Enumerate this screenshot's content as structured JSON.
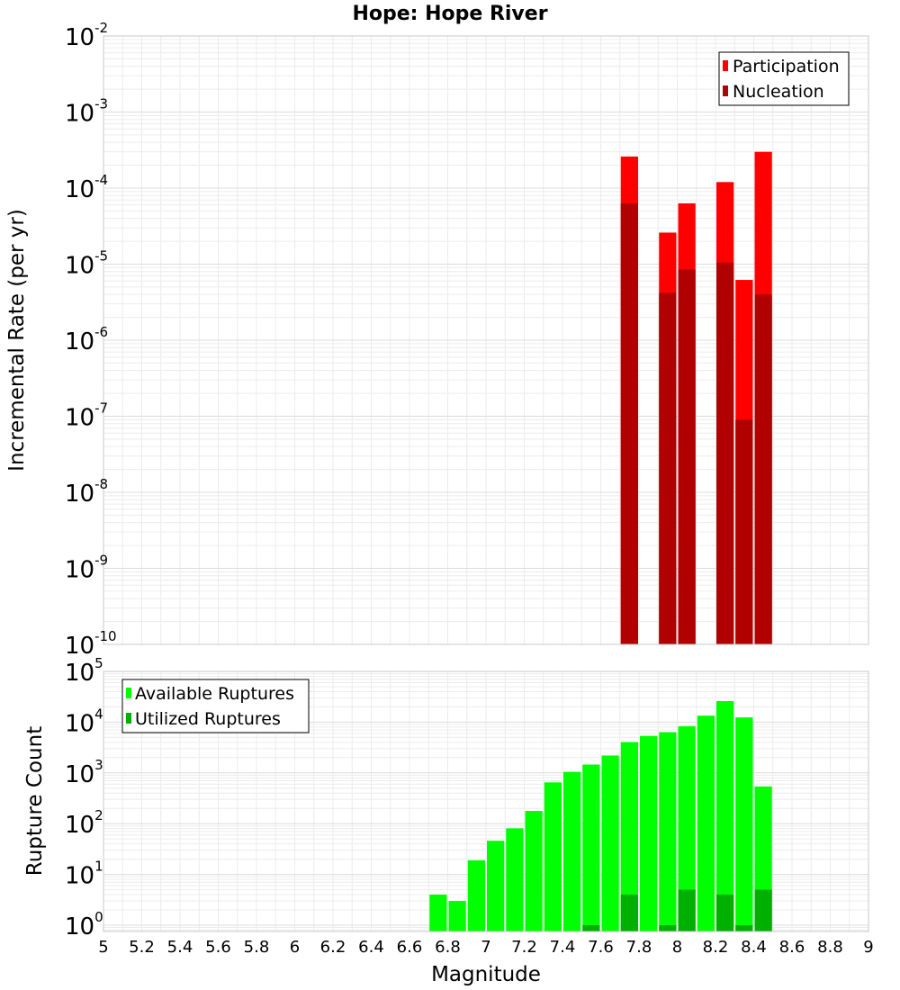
{
  "chart_data": [
    {
      "type": "bar",
      "title": "Hope: Hope River",
      "xlabel": "Magnitude",
      "ylabel": "Incremental Rate (per yr)",
      "y_scale": "log",
      "ylim": [
        1e-10,
        0.01
      ],
      "xlim": [
        5,
        9
      ],
      "bin_width": 0.1,
      "legend_position": "top-right",
      "grid": true,
      "series": [
        {
          "name": "Participation",
          "color": "#ff0000",
          "x": [
            7.75,
            7.95,
            8.05,
            8.25,
            8.35,
            8.45
          ],
          "values": [
            0.00026,
            2.6e-05,
            6.3e-05,
            0.00012,
            6.2e-06,
            0.0003
          ]
        },
        {
          "name": "Nucleation",
          "color": "#b00000",
          "x": [
            7.75,
            7.95,
            8.05,
            8.25,
            8.35,
            8.45
          ],
          "values": [
            6.3e-05,
            4.2e-06,
            8.5e-06,
            1.05e-05,
            9e-08,
            4e-06
          ]
        }
      ]
    },
    {
      "type": "bar",
      "xlabel": "Magnitude",
      "ylabel": "Rupture Count",
      "y_scale": "log",
      "ylim": [
        0.75,
        100000
      ],
      "xlim": [
        5,
        9
      ],
      "bin_width": 0.1,
      "legend_position": "top-left",
      "grid": true,
      "series": [
        {
          "name": "Available Ruptures",
          "color": "#00ff00",
          "x": [
            6.75,
            6.85,
            6.95,
            7.05,
            7.15,
            7.25,
            7.35,
            7.45,
            7.55,
            7.65,
            7.75,
            7.85,
            7.95,
            8.05,
            8.15,
            8.25,
            8.35,
            8.45
          ],
          "values": [
            4,
            3,
            19,
            46,
            81,
            178,
            650,
            1050,
            1460,
            2200,
            4050,
            5350,
            6350,
            8300,
            13400,
            26000,
            12400,
            540
          ]
        },
        {
          "name": "Utilized Ruptures",
          "color": "#00b000",
          "x": [
            7.55,
            7.75,
            7.95,
            8.05,
            8.25,
            8.35,
            8.45
          ],
          "values": [
            1,
            4,
            1,
            5,
            4,
            1,
            5
          ]
        }
      ]
    }
  ],
  "x_ticks": [
    "5",
    "5.2",
    "5.4",
    "5.6",
    "5.8",
    "6",
    "6.2",
    "6.4",
    "6.6",
    "6.8",
    "7",
    "7.2",
    "7.4",
    "7.6",
    "7.8",
    "8",
    "8.2",
    "8.4",
    "8.6",
    "8.8",
    "9"
  ],
  "top_y_ticks": [
    {
      "base": "10",
      "exp": "-2",
      "value": 0.01
    },
    {
      "base": "10",
      "exp": "-3",
      "value": 0.001
    },
    {
      "base": "10",
      "exp": "-4",
      "value": 0.0001
    },
    {
      "base": "10",
      "exp": "-5",
      "value": 1e-05
    },
    {
      "base": "10",
      "exp": "-6",
      "value": 1e-06
    },
    {
      "base": "10",
      "exp": "-7",
      "value": 1e-07
    },
    {
      "base": "10",
      "exp": "-8",
      "value": 1e-08
    },
    {
      "base": "10",
      "exp": "-9",
      "value": 1e-09
    },
    {
      "base": "10",
      "exp": "-10",
      "value": 1e-10
    }
  ],
  "bottom_y_ticks": [
    {
      "base": "10",
      "exp": "5",
      "value": 100000
    },
    {
      "base": "10",
      "exp": "4",
      "value": 10000
    },
    {
      "base": "10",
      "exp": "3",
      "value": 1000
    },
    {
      "base": "10",
      "exp": "2",
      "value": 100
    },
    {
      "base": "10",
      "exp": "1",
      "value": 10
    },
    {
      "base": "10",
      "exp": "0",
      "value": 1
    }
  ]
}
